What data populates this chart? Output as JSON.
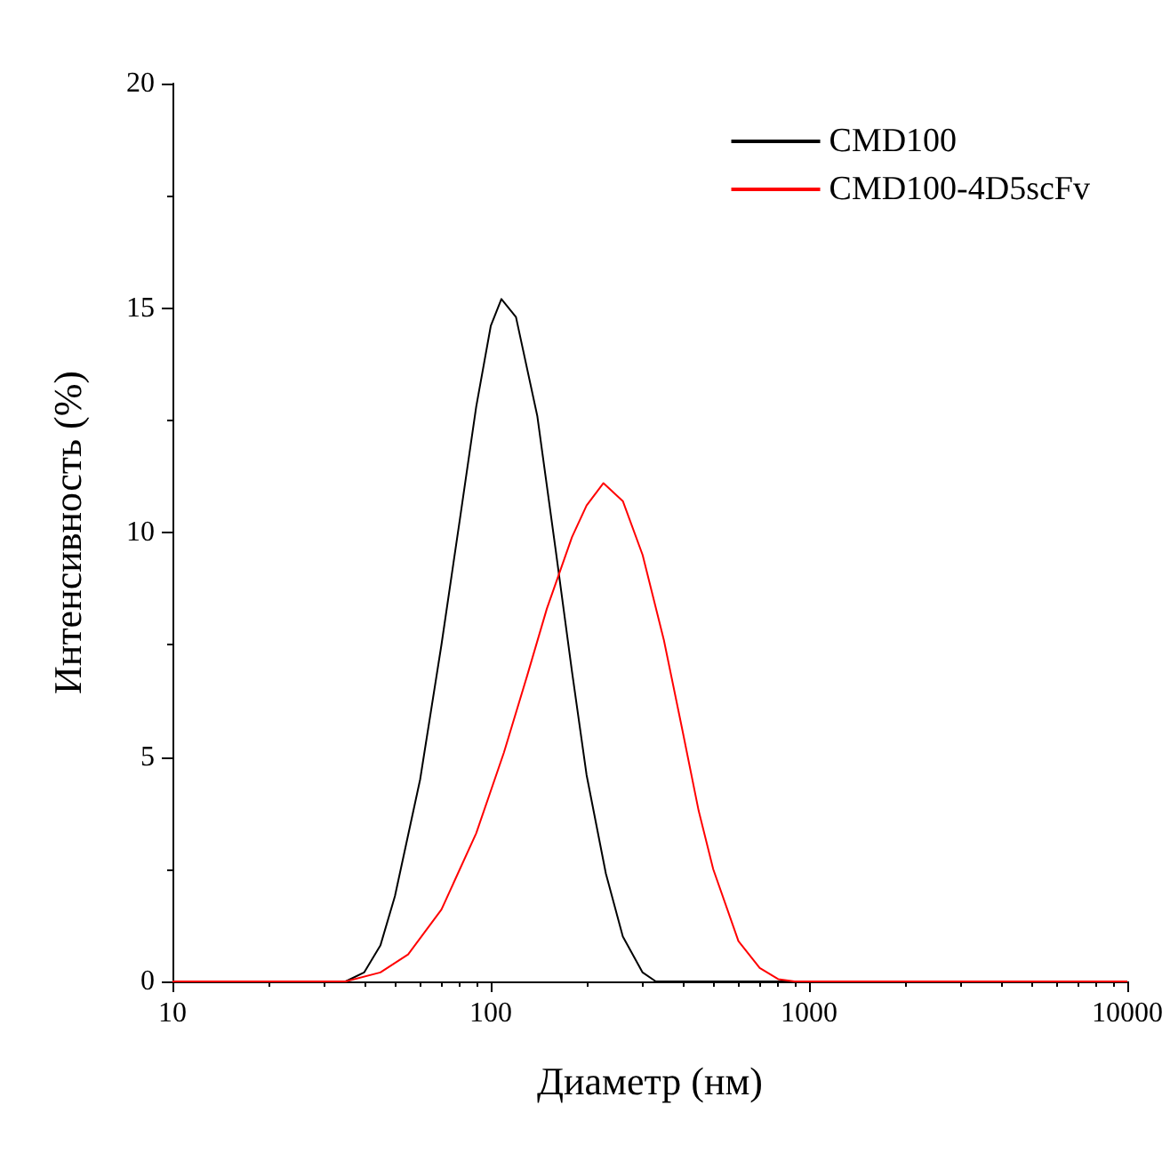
{
  "chart_data": {
    "type": "line",
    "xlabel": "Диаметр (нм)",
    "ylabel": "Интенсивность (%)",
    "log": "x",
    "xlim": [
      10,
      10000
    ],
    "xticks": [
      10,
      100,
      1000,
      10000
    ],
    "ylim": [
      0,
      20
    ],
    "yticks": [
      0,
      5,
      10,
      15,
      20
    ],
    "grid": false,
    "legend": "top right",
    "marker": "none",
    "line_style": "solid",
    "series": [
      {
        "name": "CMD100",
        "color": "#000000",
        "x": [
          10,
          35,
          40,
          45,
          50,
          60,
          70,
          80,
          90,
          100,
          108,
          120,
          140,
          160,
          180,
          200,
          230,
          260,
          300,
          330,
          10000
        ],
        "values": [
          0,
          0,
          0.2,
          0.8,
          1.9,
          4.5,
          7.5,
          10.3,
          12.8,
          14.6,
          15.2,
          14.8,
          12.6,
          9.6,
          6.9,
          4.6,
          2.4,
          1.0,
          0.2,
          0,
          0
        ]
      },
      {
        "name": "CMD100-4D5scFv",
        "color": "#ff0000",
        "x": [
          10,
          35,
          45,
          55,
          70,
          90,
          110,
          130,
          150,
          180,
          200,
          226,
          260,
          300,
          350,
          400,
          450,
          500,
          600,
          700,
          800,
          900,
          10000
        ],
        "values": [
          0,
          0,
          0.2,
          0.6,
          1.6,
          3.3,
          5.1,
          6.8,
          8.3,
          9.9,
          10.6,
          11.1,
          10.7,
          9.5,
          7.6,
          5.6,
          3.8,
          2.5,
          0.9,
          0.3,
          0.05,
          0,
          0
        ]
      }
    ]
  }
}
